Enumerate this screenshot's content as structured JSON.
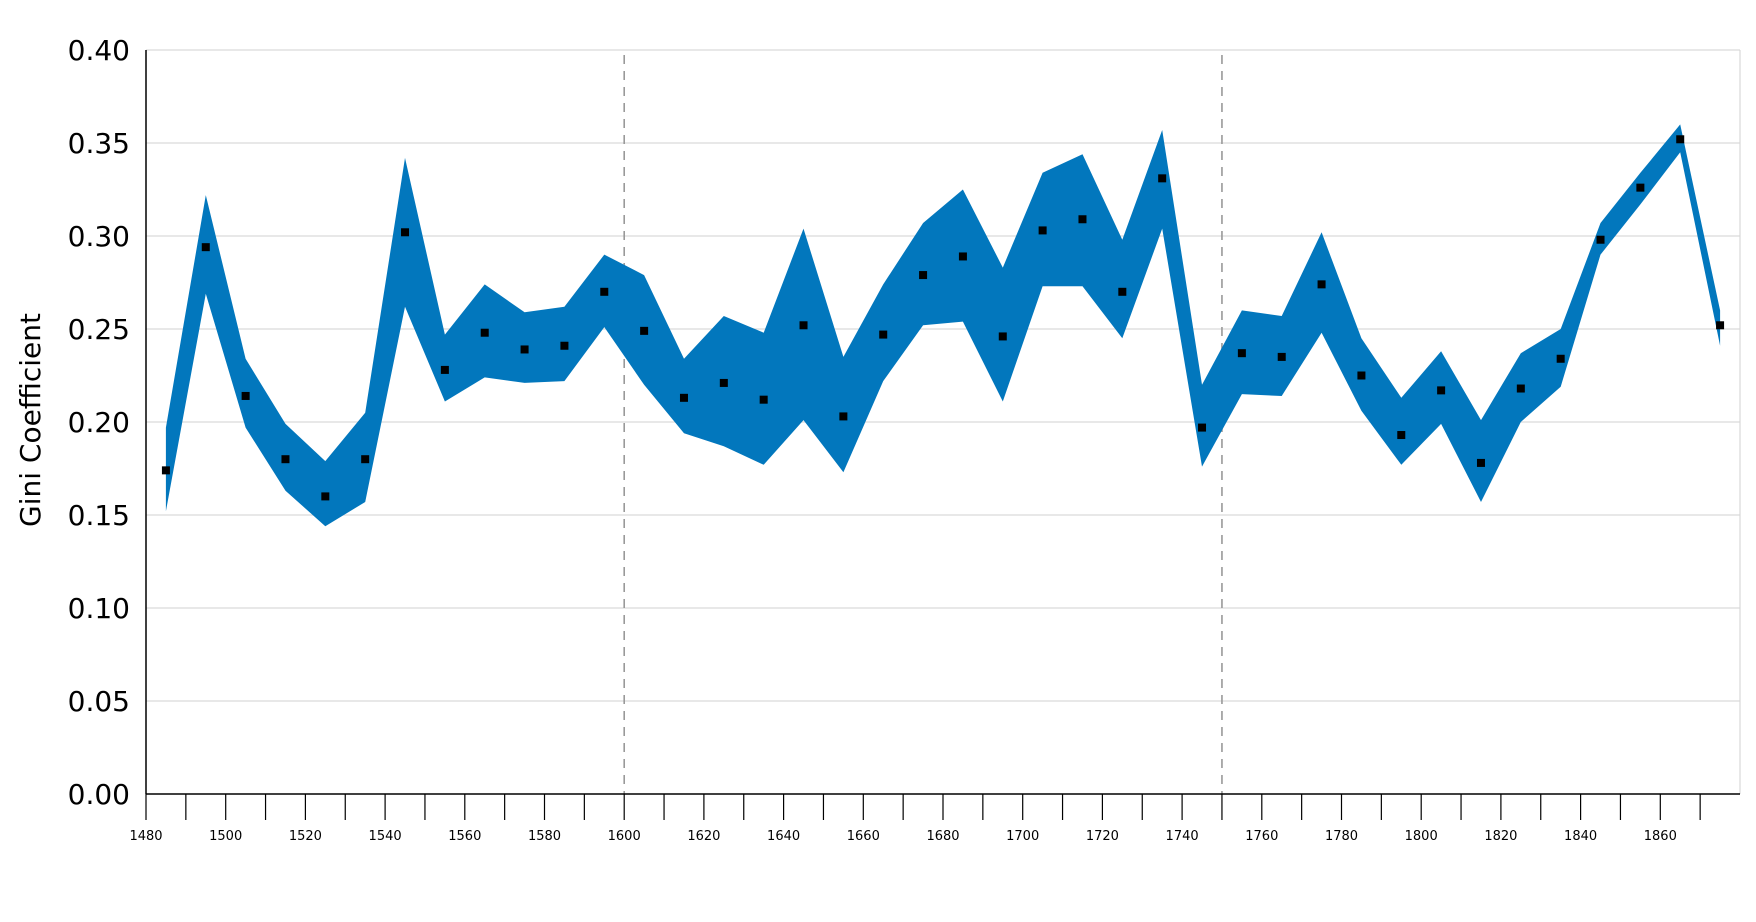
{
  "chart_data": {
    "type": "area",
    "title": "",
    "xlabel": "",
    "ylabel": "Gini Coefficient",
    "xlim": [
      1480,
      1880
    ],
    "ylim": [
      0,
      0.4
    ],
    "yticks": [
      "0.00",
      "0.05",
      "0.10",
      "0.15",
      "0.20",
      "0.25",
      "0.30",
      "0.35",
      "0.40"
    ],
    "xticks": [
      "1480",
      "1500",
      "1520",
      "1540",
      "1560",
      "1580",
      "1600",
      "1620",
      "1640",
      "1660",
      "1680",
      "1700",
      "1720",
      "1740",
      "1760",
      "1780",
      "1800",
      "1820",
      "1840",
      "1860"
    ],
    "grid": true,
    "vlines": [
      1600,
      1750
    ],
    "colors": {
      "band": "#0277BD",
      "point": "#000000",
      "grid": "#d9d9d9",
      "vline": "#999999"
    },
    "series": [
      {
        "x": [
          1485,
          1495,
          1505,
          1515,
          1525,
          1535,
          1545,
          1555,
          1565,
          1575,
          1585,
          1595,
          1605,
          1615,
          1625,
          1635,
          1645,
          1655,
          1665,
          1675,
          1685,
          1695,
          1705,
          1715,
          1725,
          1735,
          1745,
          1755,
          1765,
          1775,
          1785,
          1795,
          1805,
          1815,
          1825,
          1835,
          1845,
          1855,
          1865,
          1875
        ],
        "values": [
          0.174,
          0.294,
          0.214,
          0.18,
          0.16,
          0.18,
          0.302,
          0.228,
          0.248,
          0.239,
          0.241,
          0.27,
          0.249,
          0.213,
          0.221,
          0.212,
          0.252,
          0.203,
          0.247,
          0.279,
          0.289,
          0.246,
          0.303,
          0.309,
          0.27,
          0.331,
          0.197,
          0.237,
          0.235,
          0.274,
          0.225,
          0.193,
          0.217,
          0.178,
          0.218,
          0.234,
          0.298,
          0.326,
          0.352,
          0.252
        ],
        "upper": [
          0.197,
          0.322,
          0.234,
          0.199,
          0.179,
          0.205,
          0.342,
          0.247,
          0.274,
          0.259,
          0.262,
          0.29,
          0.279,
          0.234,
          0.257,
          0.248,
          0.304,
          0.235,
          0.274,
          0.307,
          0.325,
          0.283,
          0.334,
          0.344,
          0.298,
          0.357,
          0.22,
          0.26,
          0.257,
          0.302,
          0.245,
          0.213,
          0.238,
          0.201,
          0.237,
          0.25,
          0.307,
          0.334,
          0.36,
          0.26
        ],
        "lower": [
          0.152,
          0.269,
          0.197,
          0.163,
          0.144,
          0.157,
          0.262,
          0.211,
          0.224,
          0.221,
          0.222,
          0.251,
          0.22,
          0.194,
          0.187,
          0.177,
          0.201,
          0.173,
          0.222,
          0.252,
          0.254,
          0.211,
          0.273,
          0.273,
          0.245,
          0.304,
          0.176,
          0.215,
          0.214,
          0.248,
          0.206,
          0.177,
          0.199,
          0.157,
          0.2,
          0.219,
          0.29,
          0.317,
          0.345,
          0.241
        ]
      }
    ]
  }
}
